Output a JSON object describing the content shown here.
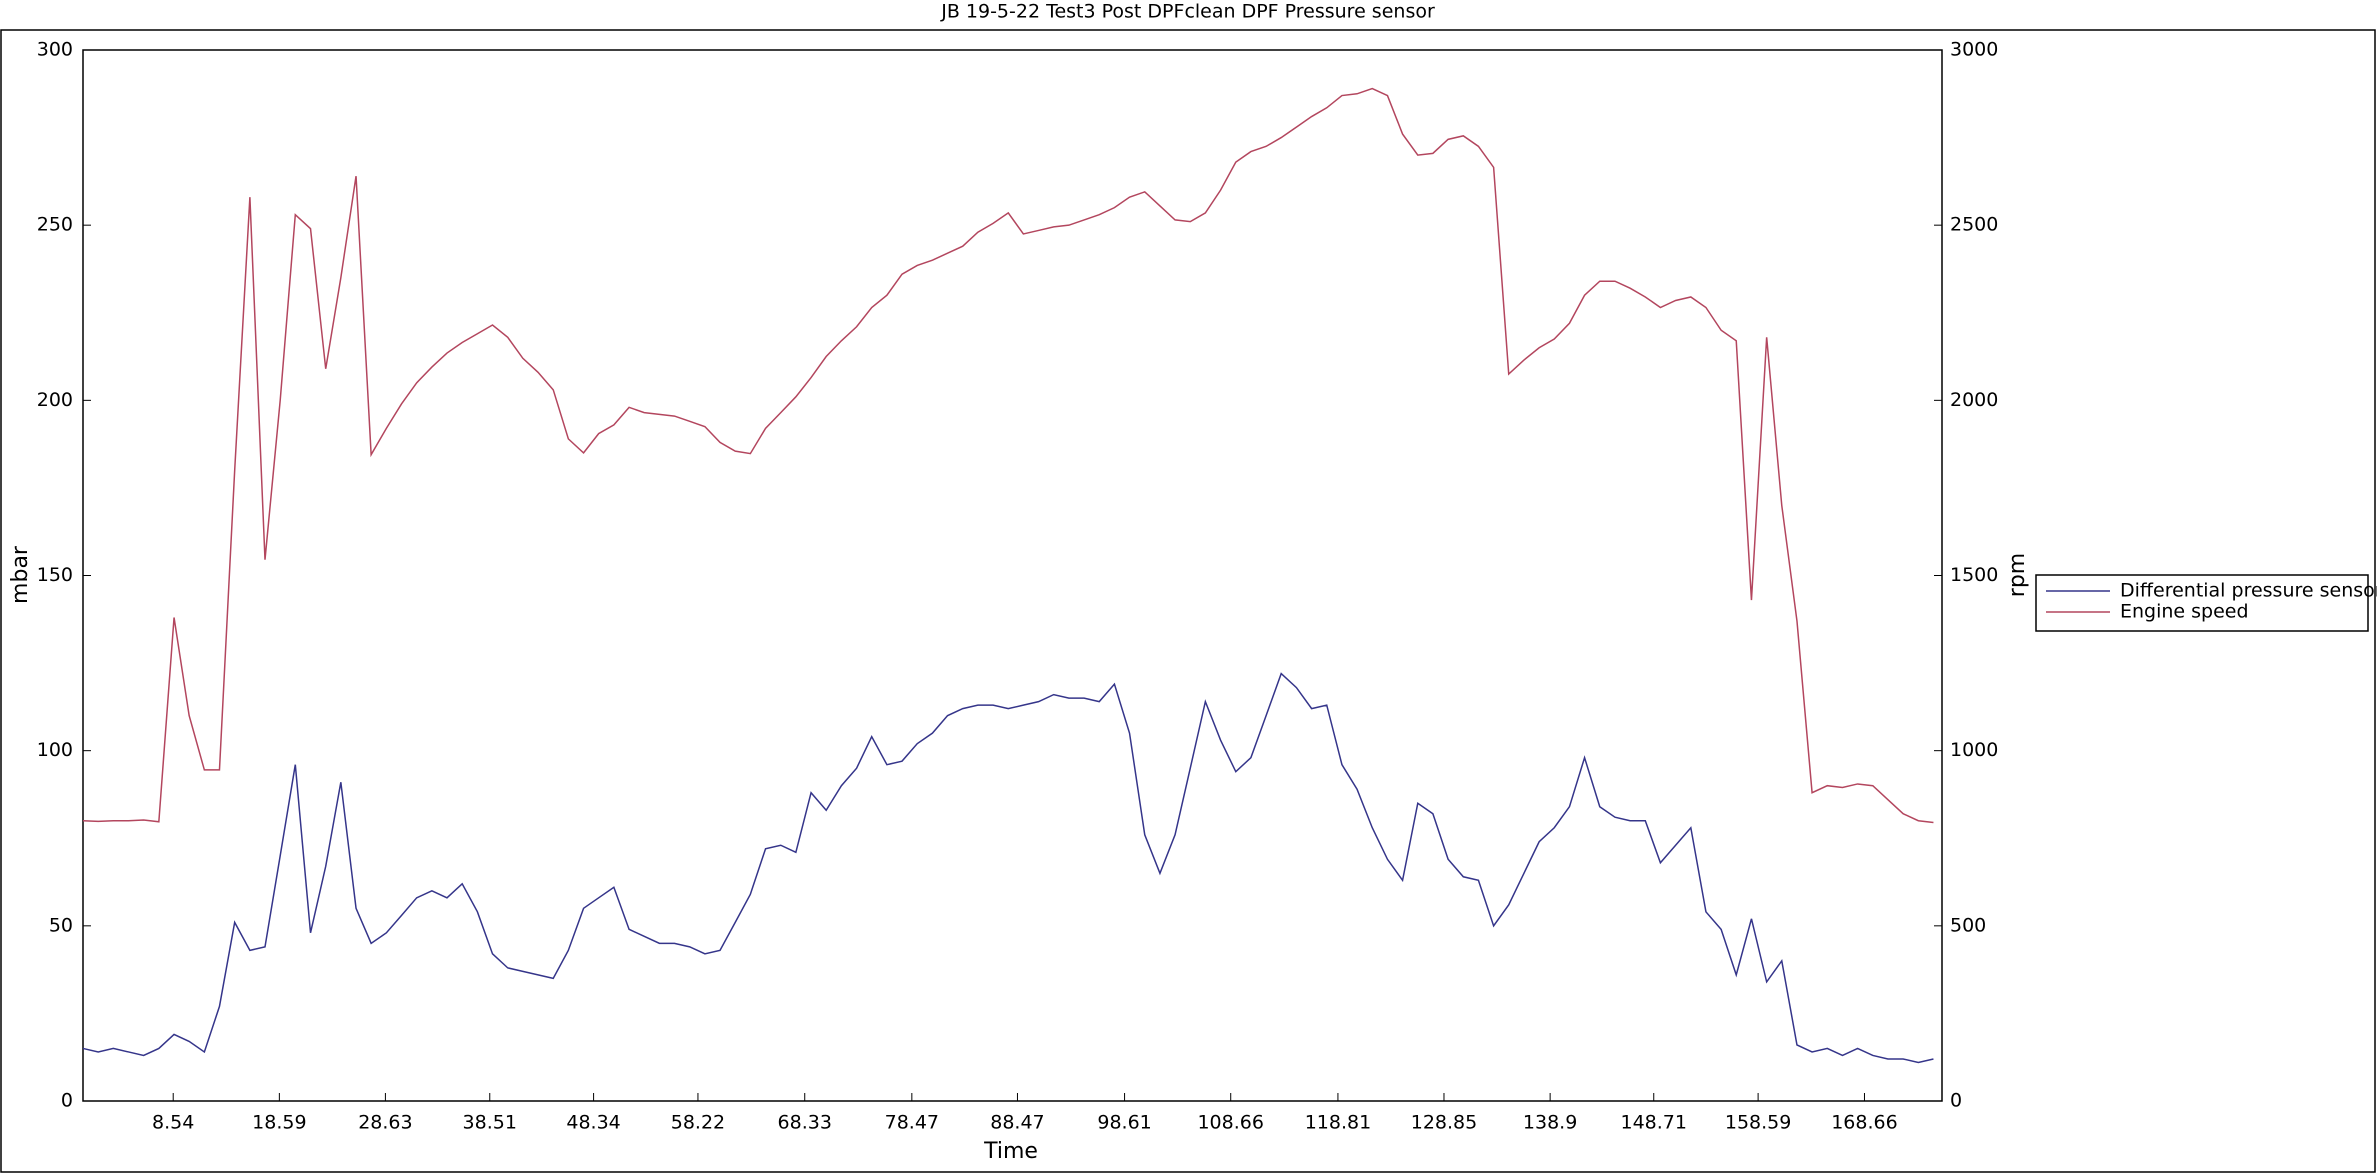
{
  "chart_data": {
    "type": "line",
    "title": "JB 19-5-22 Test3 Post DPFclean DPF Pressure sensor",
    "xlabel": "Time",
    "ylabel": "mbar",
    "y2label": "rpm",
    "x": [
      0,
      1.44,
      2.87,
      4.31,
      5.74,
      7.18,
      8.62,
      10.05,
      11.49,
      12.92,
      14.36,
      15.8,
      17.23,
      18.67,
      20.1,
      21.54,
      22.98,
      24.41,
      25.85,
      27.28,
      28.72,
      30.16,
      31.59,
      33.03,
      34.46,
      35.9,
      37.34,
      38.77,
      40.21,
      41.64,
      43.08,
      44.52,
      45.95,
      47.39,
      48.82,
      50.26,
      51.7,
      53.13,
      54.57,
      56,
      57.44,
      58.88,
      60.31,
      61.75,
      63.18,
      64.62,
      66.06,
      67.49,
      68.93,
      70.36,
      71.8,
      73.24,
      74.67,
      76.11,
      77.54,
      78.98,
      80.42,
      81.85,
      83.29,
      84.72,
      86.16,
      87.6,
      89.03,
      90.47,
      91.9,
      93.34,
      94.78,
      96.21,
      97.65,
      99.08,
      100.52,
      101.96,
      103.39,
      104.83,
      106.26,
      107.7,
      109.14,
      110.57,
      112.01,
      113.44,
      114.88,
      116.32,
      117.75,
      119.19,
      120.62,
      122.06,
      123.5,
      124.93,
      126.37,
      127.8,
      129.24,
      130.68,
      132.11,
      133.55,
      134.98,
      136.42,
      137.86,
      139.29,
      140.73,
      142.16,
      143.6,
      145.04,
      146.47,
      147.91,
      149.34,
      150.78,
      152.22,
      153.65,
      155.09,
      156.52,
      157.96,
      159.4,
      160.83,
      162.27,
      163.7,
      165.14,
      166.58,
      168.01,
      169.45,
      170.88,
      172.32,
      173.76,
      175.19
    ],
    "series": [
      {
        "name": "Differential pressure sensor",
        "color": "#35358a",
        "axis": "y",
        "values": [
          15,
          14,
          15,
          14,
          13,
          15,
          19,
          17,
          14,
          27,
          51,
          43,
          44,
          70,
          96,
          48,
          67,
          91,
          55,
          45,
          48,
          53,
          58,
          60,
          58,
          62,
          54,
          42,
          38,
          37,
          36,
          35,
          43,
          55,
          58,
          61,
          49,
          47,
          45,
          45,
          44,
          42,
          43,
          51,
          59,
          72,
          73,
          71,
          88,
          83,
          90,
          95,
          104,
          96,
          97,
          102,
          105,
          110,
          112,
          113,
          113,
          112,
          113,
          114,
          116,
          115,
          115,
          114,
          119,
          105,
          76,
          65,
          76,
          95,
          114,
          103,
          94,
          98,
          110,
          122,
          118,
          112,
          113,
          96,
          89,
          78,
          69,
          63,
          85,
          82,
          69,
          64,
          63,
          50,
          56,
          65,
          74,
          78,
          84,
          98,
          84,
          81,
          80,
          80,
          68,
          73,
          78,
          54,
          49,
          36,
          52,
          34,
          40,
          16,
          14,
          15,
          13,
          15,
          13,
          12,
          12,
          11,
          12
        ]
      },
      {
        "name": "Engine speed",
        "color": "#b3465e",
        "axis": "y2",
        "values": [
          800,
          798,
          800,
          800,
          802,
          797,
          1380,
          1100,
          945,
          945,
          1800,
          2580,
          1545,
          2000,
          2530,
          2490,
          2090,
          2350,
          2640,
          1845,
          1920,
          1990,
          2050,
          2095,
          2135,
          2165,
          2190,
          2215,
          2180,
          2120,
          2080,
          2030,
          1890,
          1850,
          1905,
          1930,
          1980,
          1965,
          1960,
          1955,
          1940,
          1925,
          1880,
          1855,
          1848,
          1920,
          1965,
          2010,
          2065,
          2125,
          2170,
          2210,
          2265,
          2300,
          2360,
          2385,
          2400,
          2420,
          2440,
          2480,
          2505,
          2535,
          2475,
          2485,
          2495,
          2500,
          2515,
          2530,
          2550,
          2580,
          2595,
          2555,
          2515,
          2510,
          2535,
          2600,
          2680,
          2710,
          2725,
          2750,
          2780,
          2810,
          2835,
          2870,
          2875,
          2890,
          2870,
          2760,
          2700,
          2705,
          2745,
          2755,
          2725,
          2665,
          2075,
          2115,
          2150,
          2175,
          2220,
          2300,
          2340,
          2340,
          2320,
          2295,
          2265,
          2285,
          2295,
          2265,
          2200,
          2170,
          1430,
          2180,
          1700,
          1370,
          880,
          900,
          895,
          905,
          900,
          860,
          820,
          800,
          795
        ]
      }
    ],
    "xlim": [
      0,
      176
    ],
    "xticks": [
      8.54,
      18.59,
      28.63,
      38.51,
      48.34,
      58.22,
      68.33,
      78.47,
      88.47,
      98.61,
      108.66,
      118.81,
      128.85,
      138.9,
      148.71,
      158.59,
      168.66
    ],
    "ylim": [
      0,
      300
    ],
    "yticks": [
      0,
      50,
      100,
      150,
      200,
      250,
      300
    ],
    "y2lim": [
      0,
      3000
    ],
    "y2ticks": [
      0,
      500,
      1000,
      1500,
      2000,
      2500,
      3000
    ],
    "legend": "right"
  }
}
